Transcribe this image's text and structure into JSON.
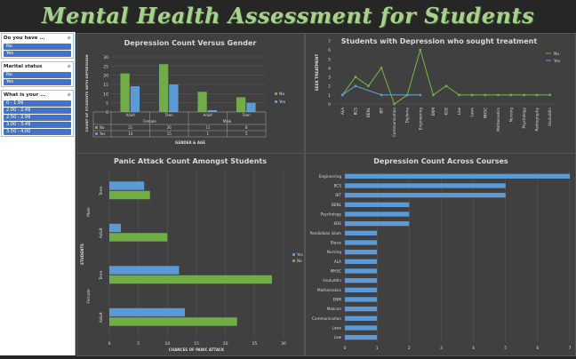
{
  "banner": {
    "title": "Mental Health Assessment for Students"
  },
  "colors": {
    "green": "#70ad47",
    "blue": "#5b9bd5",
    "bg": "#404040",
    "grid": "#595959",
    "text": "#d9d9d9"
  },
  "slicers": [
    {
      "title": "Do you have ...",
      "icon": "filter-clear-icon",
      "items": [
        "No",
        "Yes"
      ]
    },
    {
      "title": "Marital status",
      "icon": "filter-clear-icon",
      "items": [
        "No",
        "Yes"
      ]
    },
    {
      "title": "What is your ...",
      "icon": "filter-clear-icon",
      "items": [
        "0 - 1.99",
        "2.00 - 2.49",
        "2.50 - 2.99",
        "3.00 - 3.49",
        "3.50 - 4.00"
      ]
    }
  ],
  "chart_data": [
    {
      "type": "bar",
      "title": "Depression Count Versus Gender",
      "xlabel": "GENDER & AGE",
      "ylabel": "COUNT OF STUDENTS WITH DEPRESSION",
      "ylim": [
        0,
        30
      ],
      "yticks": [
        "0",
        "5",
        "10",
        "15",
        "20",
        "25",
        "30"
      ],
      "categories": [
        "Adult",
        "Teen",
        "Adult",
        "Teen"
      ],
      "groups": [
        "Female",
        "Male"
      ],
      "series": [
        {
          "name": "No",
          "values": [
            21,
            26,
            11,
            8
          ],
          "color": "#70ad47"
        },
        {
          "name": "Yes",
          "values": [
            14,
            15,
            1,
            5
          ],
          "color": "#5b9bd5"
        }
      ],
      "legend": "right"
    },
    {
      "type": "line",
      "title": "Students with Depression who sought treatment",
      "ylabel": "SEEK TREATMENT",
      "ylim": [
        0,
        7
      ],
      "yticks": [
        "0",
        "1",
        "2",
        "3",
        "4",
        "5",
        "6",
        "7"
      ],
      "categories": [
        "ALA",
        "BCS",
        "BENL",
        "BIT",
        "Communication",
        "Diploma",
        "Engineering",
        "ENM",
        "KOE",
        "Law",
        "Laws",
        "MHSC",
        "Mathematics",
        "Nursing",
        "Psychology",
        "Radiography",
        "Usuluddin"
      ],
      "series": [
        {
          "name": "No",
          "values": [
            1,
            3,
            2,
            4,
            0,
            1,
            6,
            1,
            2,
            1,
            1,
            1,
            1,
            1,
            1,
            1,
            1
          ],
          "color": "#70ad47"
        },
        {
          "name": "Yes",
          "values": [
            1,
            2,
            null,
            1,
            null,
            null,
            1,
            null,
            null,
            null,
            null,
            null,
            null,
            null,
            null,
            null,
            null
          ],
          "color": "#5b9bd5"
        }
      ],
      "legend": "right"
    },
    {
      "type": "bar",
      "orientation": "horizontal",
      "title": "Panic Attack Count Amongst Students",
      "xlabel": "CHANCES OF PANIC ATTACK",
      "ylabel": "STUDENTS",
      "xlim": [
        0,
        30
      ],
      "xticks": [
        "0",
        "5",
        "10",
        "15",
        "20",
        "25",
        "30"
      ],
      "categories": [
        "Teen",
        "Adult",
        "Teen",
        "Adult"
      ],
      "groups": [
        "Male",
        "Female"
      ],
      "series": [
        {
          "name": "Yes",
          "values": [
            6,
            2,
            12,
            13
          ],
          "color": "#5b9bd5"
        },
        {
          "name": "No",
          "values": [
            7,
            10,
            28,
            22
          ],
          "color": "#70ad47"
        }
      ],
      "legend": "right"
    },
    {
      "type": "bar",
      "orientation": "horizontal",
      "title": "Depression Count Across Courses",
      "xlim": [
        0,
        7
      ],
      "xticks": [
        "0",
        "1",
        "2",
        "3",
        "4",
        "5",
        "6",
        "7"
      ],
      "categories": [
        "Engineering",
        "BCS",
        "BIT",
        "BENL",
        "Psychology",
        "KOE",
        "Pendidikan Islam",
        "Biasis",
        "Nursing",
        "ALA",
        "MHSC",
        "Usuluddin",
        "Mathematics",
        "ENM",
        "Malcom",
        "Communication",
        "Laws",
        "Law"
      ],
      "values": [
        7,
        5,
        5,
        2,
        2,
        2,
        1,
        1,
        1,
        1,
        1,
        1,
        1,
        1,
        1,
        1,
        1,
        1
      ],
      "color": "#5b9bd5"
    }
  ]
}
